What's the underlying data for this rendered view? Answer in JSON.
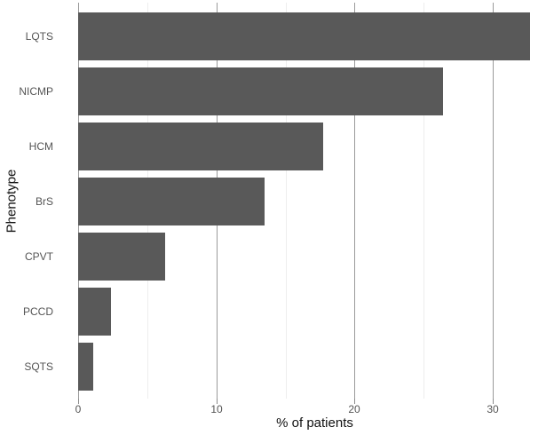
{
  "chart_data": {
    "type": "bar",
    "orientation": "horizontal",
    "title": "",
    "xlabel": "% of patients",
    "ylabel": "Phenotype",
    "categories": [
      "LQTS",
      "NICMP",
      "HCM",
      "BrS",
      "CPVT",
      "PCCD",
      "SQTS"
    ],
    "values": [
      32.7,
      26.4,
      17.7,
      13.5,
      6.3,
      2.4,
      1.1
    ],
    "xlim": [
      0,
      34.2
    ],
    "x_major_ticks": [
      0,
      10,
      20,
      30
    ],
    "x_minor_gridlines": [
      5,
      15,
      25
    ],
    "grid": "vertical major and minor gridlines, no axis lines",
    "legend": "none",
    "colors": {
      "bar": "#595959",
      "major_grid": "#9a9a9a",
      "minor_grid": "#ededed",
      "tick_mark": "#8c8c8c",
      "tick_label": "#555555",
      "axis_title": "#111111",
      "category_label": "#555555",
      "background": "#ffffff"
    }
  }
}
